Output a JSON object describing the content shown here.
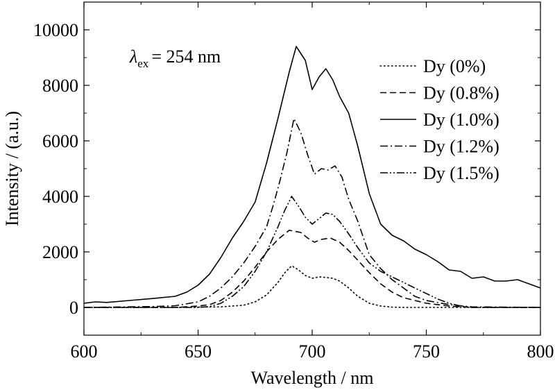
{
  "chart_data": {
    "type": "line",
    "title": "",
    "xlabel": "Wavelength / nm",
    "ylabel": "Intensity / (a.u.)",
    "xlim": [
      600,
      800
    ],
    "ylim": [
      -1000,
      11000
    ],
    "xticks": [
      600,
      650,
      700,
      750,
      800
    ],
    "yticks": [
      0,
      2000,
      4000,
      6000,
      8000,
      10000
    ],
    "grid": false,
    "legend_position": "top-right",
    "annotation": {
      "symbol": "λ",
      "subscript": "ex",
      "text": "= 254 nm"
    },
    "series": [
      {
        "name": "Dy (0%)",
        "dash": "dotted",
        "x": [
          600,
          640,
          660,
          670,
          675,
          680,
          685,
          688,
          691,
          694,
          697,
          700,
          703,
          706,
          709,
          712,
          716,
          720,
          725,
          730,
          735,
          740,
          750,
          760,
          780,
          800
        ],
        "y": [
          0,
          0,
          20,
          80,
          200,
          450,
          900,
          1250,
          1500,
          1350,
          1150,
          1050,
          1100,
          1080,
          1050,
          950,
          700,
          400,
          150,
          50,
          10,
          0,
          0,
          0,
          0,
          0
        ]
      },
      {
        "name": "Dy (0.8%)",
        "dash": "dashed",
        "x": [
          600,
          640,
          650,
          655,
          660,
          665,
          670,
          675,
          680,
          685,
          690,
          695,
          698,
          701,
          704,
          708,
          712,
          716,
          720,
          725,
          730,
          735,
          740,
          745,
          750,
          760,
          770,
          800
        ],
        "y": [
          0,
          0,
          50,
          100,
          250,
          550,
          950,
          1450,
          2000,
          2450,
          2780,
          2700,
          2500,
          2350,
          2450,
          2500,
          2350,
          2050,
          1700,
          1250,
          850,
          550,
          350,
          250,
          150,
          50,
          0,
          0
        ]
      },
      {
        "name": "Dy (1.0%)",
        "dash": "solid",
        "x": [
          600,
          605,
          610,
          620,
          630,
          640,
          645,
          650,
          655,
          660,
          665,
          670,
          675,
          680,
          685,
          690,
          693,
          697,
          700,
          703,
          706,
          709,
          712,
          716,
          720,
          725,
          730,
          735,
          740,
          745,
          750,
          755,
          760,
          765,
          770,
          775,
          780,
          785,
          790,
          795,
          800
        ],
        "y": [
          150,
          200,
          180,
          250,
          320,
          400,
          550,
          800,
          1200,
          1800,
          2500,
          3100,
          3800,
          5200,
          6800,
          8500,
          9400,
          8900,
          7850,
          8300,
          8600,
          8200,
          7600,
          7000,
          5800,
          4100,
          3000,
          2600,
          2400,
          2100,
          1900,
          1650,
          1350,
          1300,
          1050,
          1100,
          950,
          950,
          1000,
          850,
          700
        ]
      },
      {
        "name": "Dy (1.2%)",
        "dash": "dashdot",
        "x": [
          600,
          630,
          640,
          650,
          655,
          660,
          665,
          670,
          675,
          680,
          683,
          686,
          689,
          692,
          695,
          698,
          701,
          704,
          707,
          710,
          713,
          716,
          720,
          725,
          730,
          735,
          740,
          745,
          750,
          760,
          770,
          800
        ],
        "y": [
          0,
          30,
          60,
          200,
          400,
          700,
          1100,
          1600,
          2200,
          2900,
          3700,
          4600,
          5600,
          6800,
          6300,
          5500,
          4800,
          5000,
          4950,
          5100,
          4700,
          3900,
          3100,
          1900,
          1400,
          1000,
          700,
          400,
          250,
          100,
          20,
          0
        ]
      },
      {
        "name": "Dy (1.5%)",
        "dash": "dashdotdot",
        "x": [
          600,
          650,
          655,
          660,
          665,
          670,
          675,
          680,
          685,
          688,
          691,
          694,
          697,
          700,
          703,
          706,
          709,
          712,
          716,
          720,
          725,
          730,
          735,
          740,
          745,
          750,
          755,
          760,
          765,
          770,
          800
        ],
        "y": [
          0,
          0,
          30,
          150,
          400,
          750,
          1300,
          2000,
          2900,
          3500,
          4000,
          3650,
          3250,
          3000,
          3200,
          3400,
          3350,
          3100,
          2650,
          2150,
          1600,
          1300,
          1100,
          900,
          700,
          500,
          300,
          150,
          50,
          0,
          0
        ]
      }
    ]
  }
}
